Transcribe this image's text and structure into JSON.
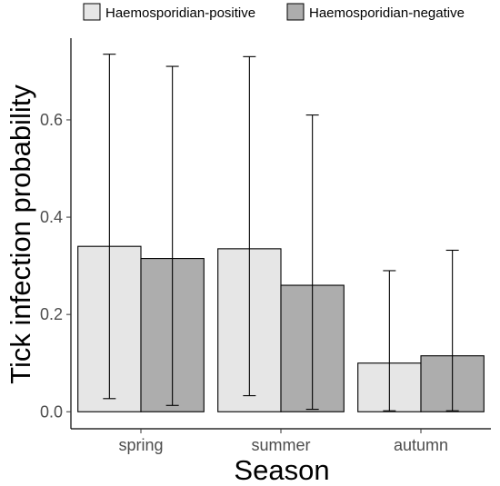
{
  "chart_data": {
    "type": "bar",
    "title": "",
    "xlabel": "Season",
    "ylabel": "Tick infection probability",
    "categories": [
      "spring",
      "summer",
      "autumn"
    ],
    "series": [
      {
        "name": "Haemosporidian-positive",
        "color": "#e6e6e6",
        "values": [
          0.34,
          0.335,
          0.1
        ],
        "ci_low": [
          0.027,
          0.033,
          0.002
        ],
        "ci_high": [
          0.735,
          0.73,
          0.29
        ]
      },
      {
        "name": "Haemosporidian-negative",
        "color": "#adadad",
        "values": [
          0.315,
          0.26,
          0.115
        ],
        "ci_low": [
          0.013,
          0.005,
          0.002
        ],
        "ci_high": [
          0.71,
          0.61,
          0.332
        ]
      }
    ],
    "yticks": [
      "0.0",
      "0.2",
      "0.4",
      "0.6"
    ],
    "ylim": [
      -0.035,
      0.768
    ],
    "grid": false,
    "legend_position": "top"
  }
}
